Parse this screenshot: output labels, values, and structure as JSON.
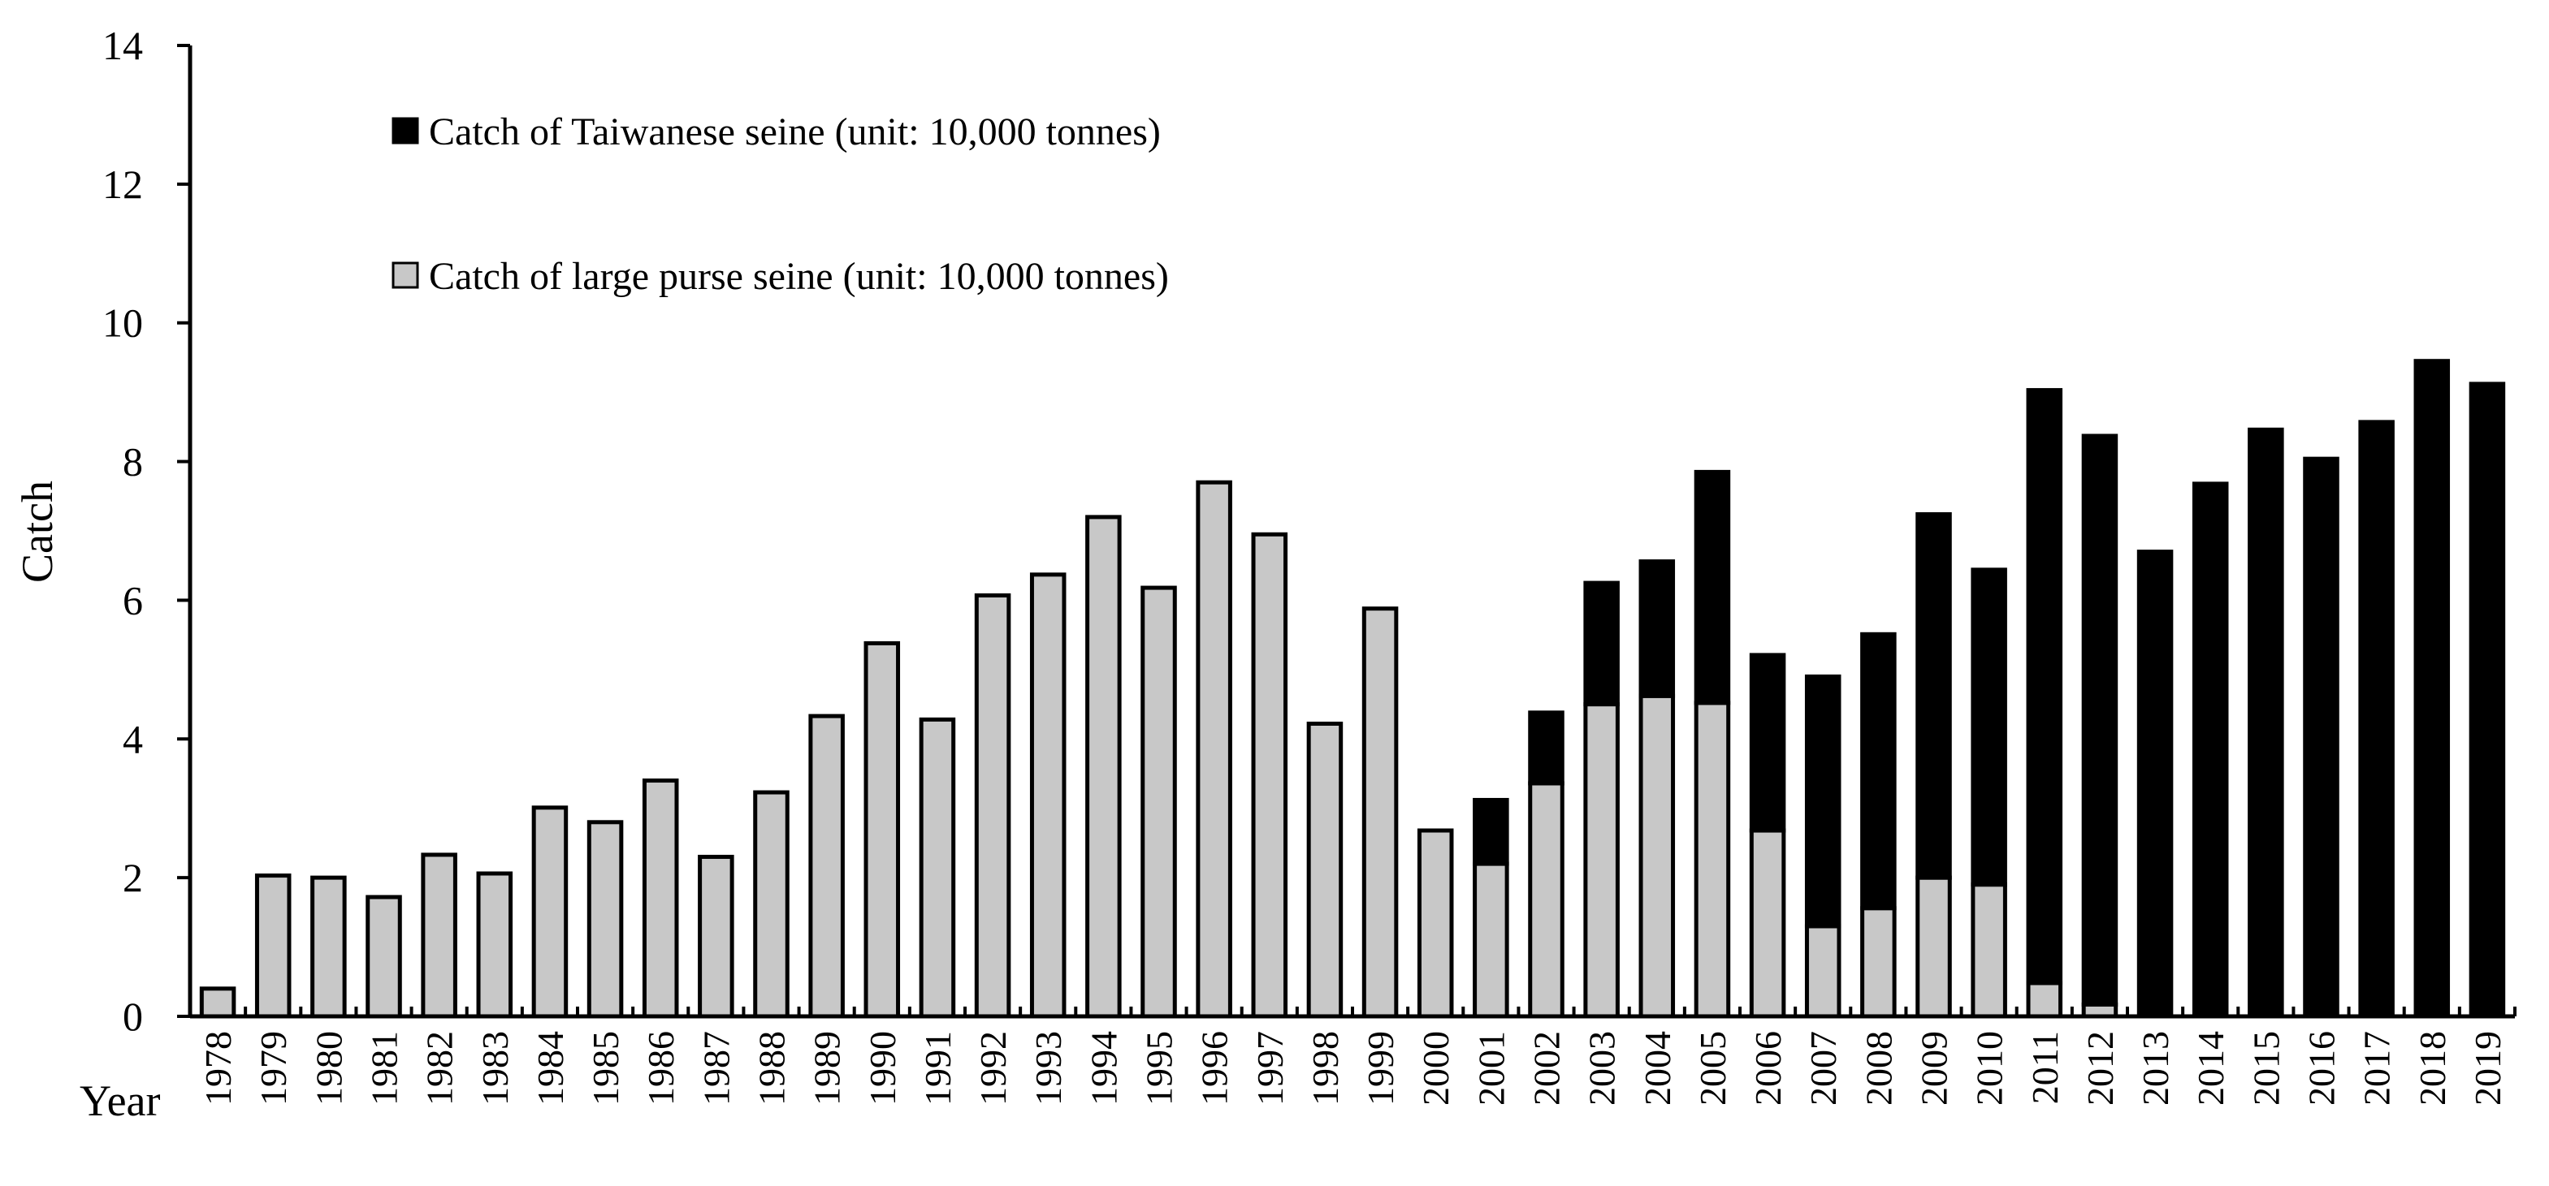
{
  "chart_data": {
    "type": "bar",
    "stacked": true,
    "title": "",
    "xlabel": "Year",
    "ylabel": "Catch",
    "ylim": [
      0,
      14
    ],
    "yticks": [
      0,
      2,
      4,
      6,
      8,
      10,
      12,
      14
    ],
    "grid": false,
    "legend_position": "top-left",
    "categories": [
      "1978",
      "1979",
      "1980",
      "1981",
      "1982",
      "1983",
      "1984",
      "1985",
      "1986",
      "1987",
      "1988",
      "1989",
      "1990",
      "1991",
      "1992",
      "1993",
      "1994",
      "1995",
      "1996",
      "1997",
      "1998",
      "1999",
      "2000",
      "2001",
      "2002",
      "2003",
      "2004",
      "2005",
      "2006",
      "2007",
      "2008",
      "2009",
      "2010",
      "2011",
      "2012",
      "2013",
      "2014",
      "2015",
      "2016",
      "2017",
      "2018",
      "2019"
    ],
    "series": [
      {
        "name": "Catch of large purse seine (unit: 10,000 tonnes)",
        "color": "#c8c8c8",
        "values": [
          0.4,
          2.03,
          2.0,
          1.72,
          2.33,
          2.06,
          3.01,
          2.8,
          3.4,
          2.3,
          3.23,
          4.33,
          5.38,
          4.28,
          6.07,
          6.37,
          7.2,
          6.18,
          7.7,
          6.95,
          4.22,
          5.88,
          2.68,
          2.2,
          3.36,
          4.5,
          4.62,
          4.52,
          2.68,
          1.3,
          1.56,
          2.0,
          1.9,
          0.48,
          0.17,
          0,
          0,
          0,
          0,
          0,
          0,
          0
        ]
      },
      {
        "name": "Catch of Taiwanese seine (unit: 10,000 tonnes)",
        "color": "#000000",
        "values": [
          0,
          0,
          0,
          0,
          0,
          0,
          0,
          0,
          0,
          0,
          0,
          0,
          0,
          0,
          0,
          0,
          0,
          0,
          0,
          0,
          0,
          0,
          0,
          0.92,
          1.02,
          1.75,
          1.94,
          3.33,
          2.53,
          3.6,
          3.95,
          5.24,
          4.54,
          8.55,
          8.2,
          6.7,
          7.68,
          8.46,
          8.04,
          8.57,
          9.45,
          9.12
        ]
      }
    ]
  }
}
